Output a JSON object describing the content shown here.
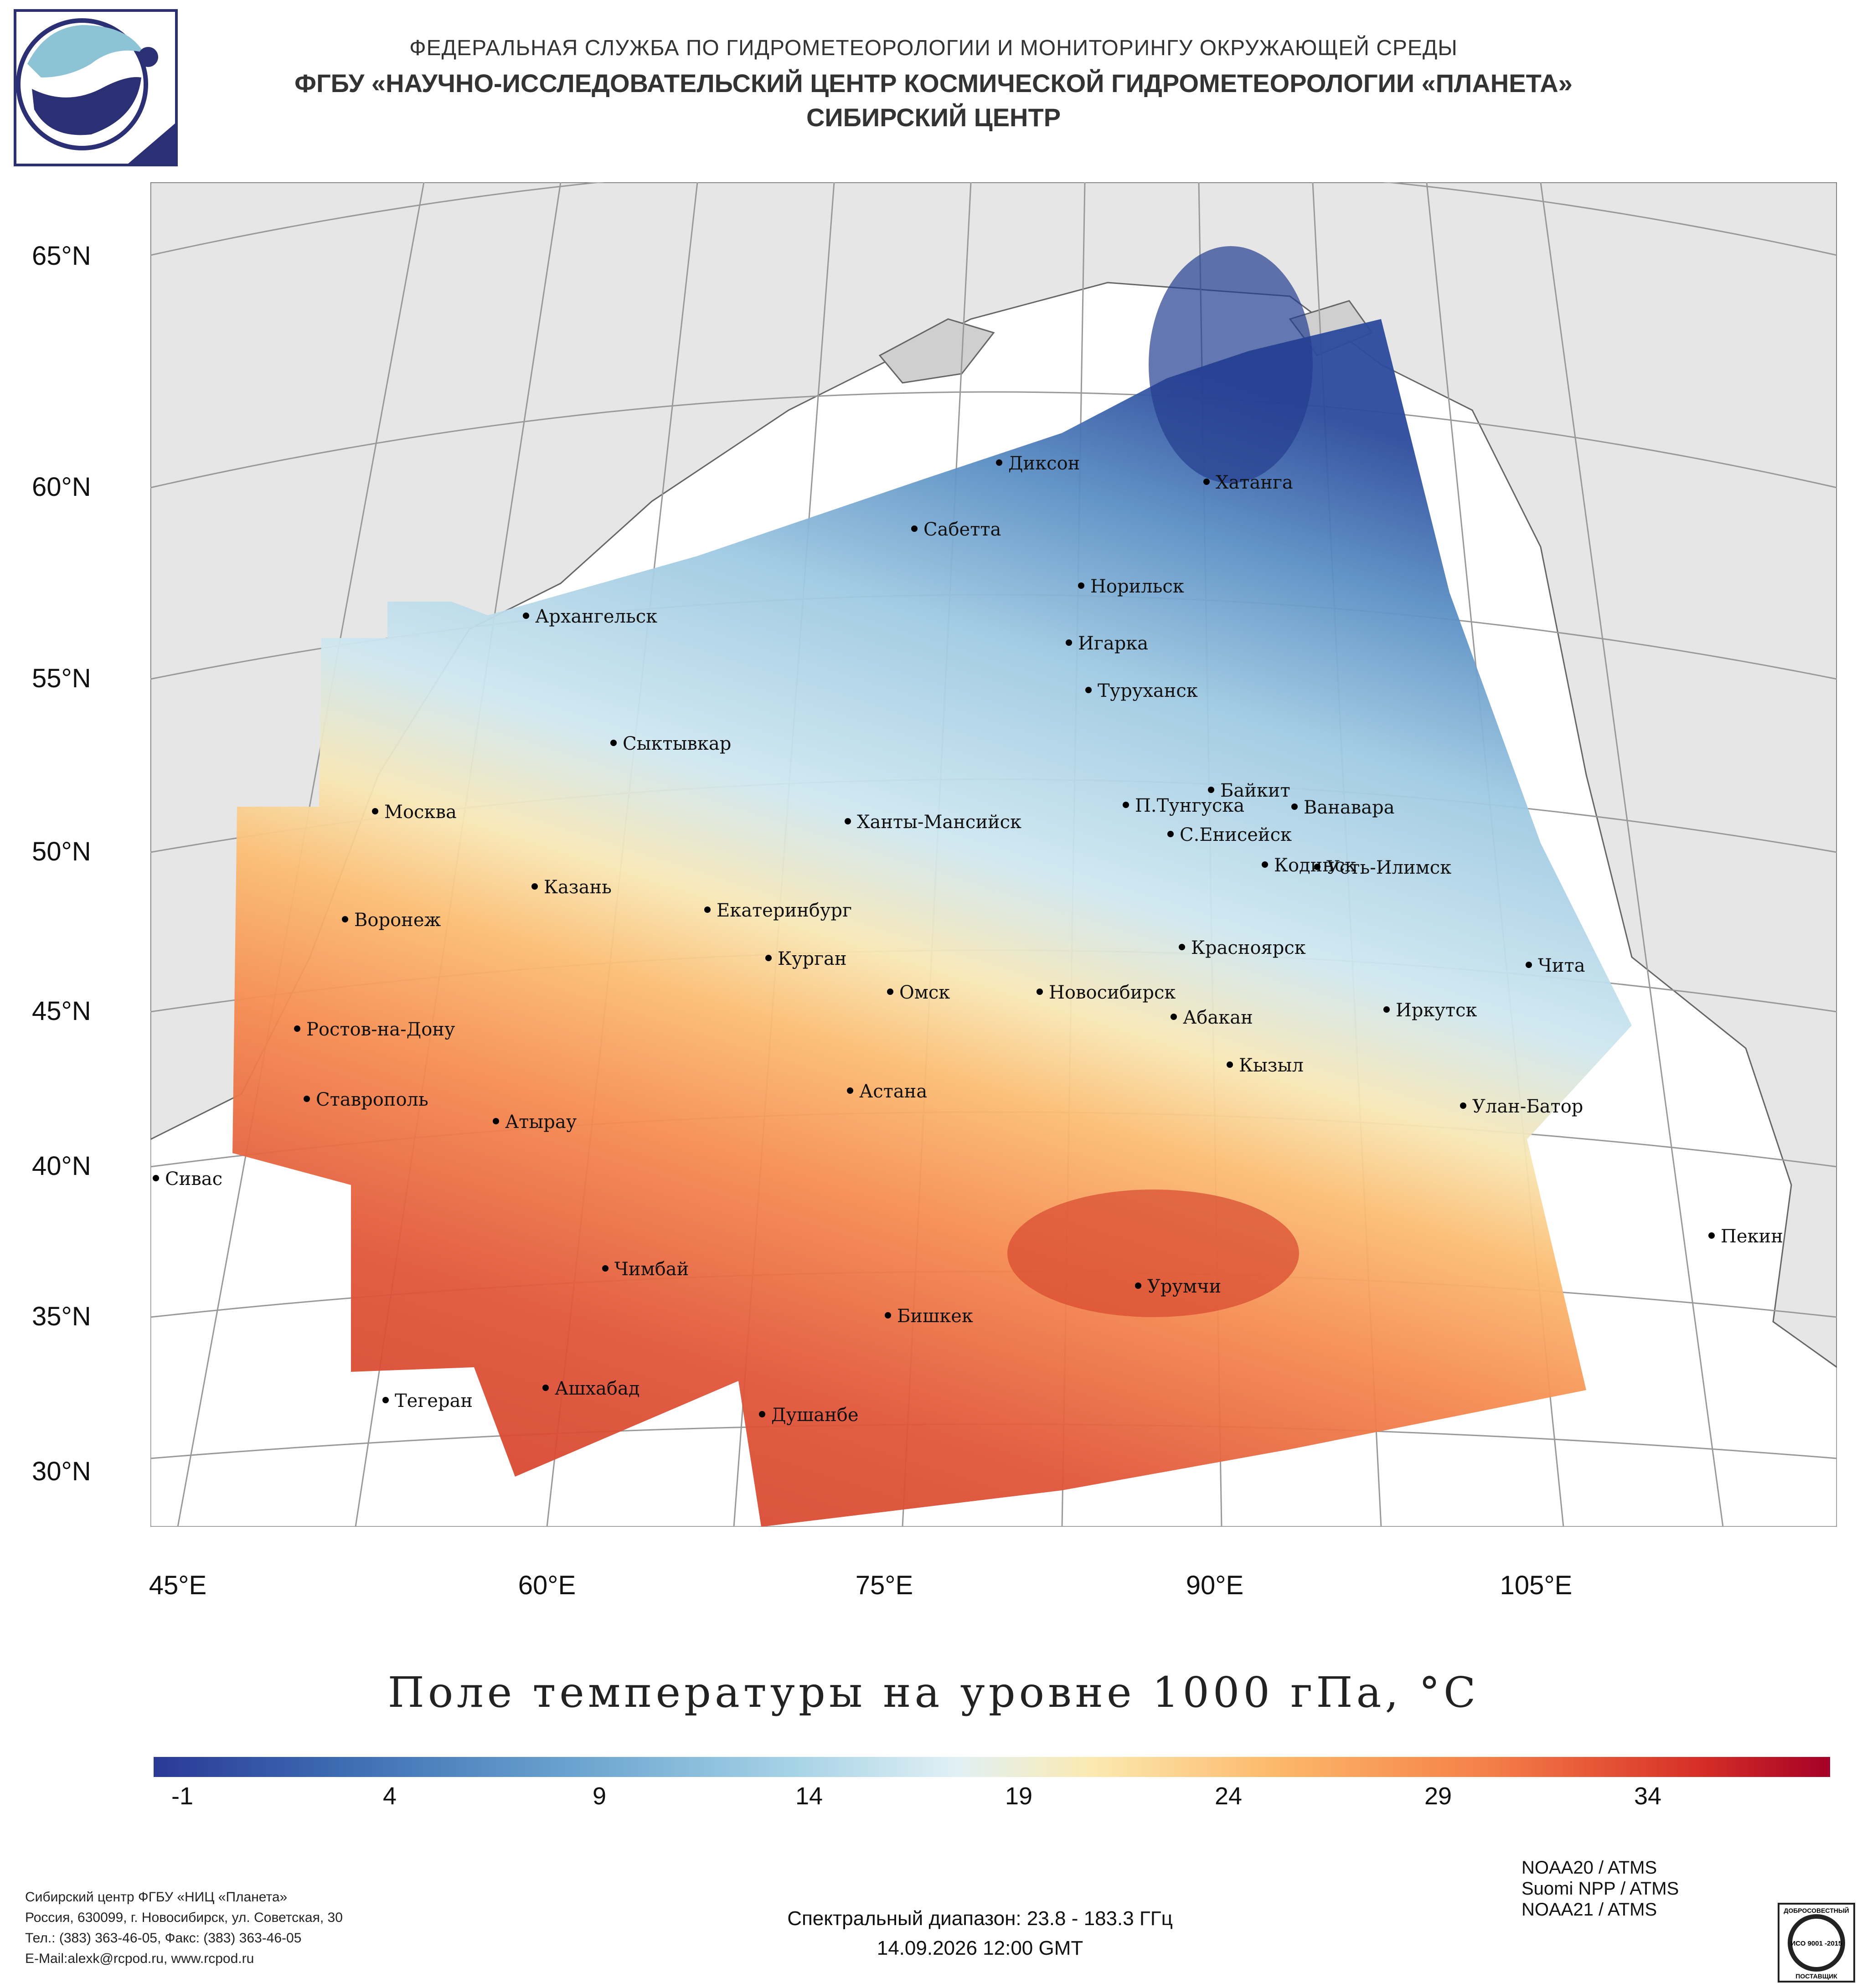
{
  "header": {
    "line1": "ФЕДЕРАЛЬНАЯ СЛУЖБА ПО ГИДРОМЕТЕОРОЛОГИИ И МОНИТОРИНГУ ОКРУЖАЮЩЕЙ СРЕДЫ",
    "line2": "ФГБУ «НАУЧНО-ИССЛЕДОВАТЕЛЬСКИЙ ЦЕНТР КОСМИЧЕСКОЙ ГИДРОМЕТЕОРОЛОГИИ «ПЛАНЕТА»",
    "line3": "СИБИРСКИЙ ЦЕНТР"
  },
  "map": {
    "lat_labels": [
      "65°N",
      "60°N",
      "55°N",
      "50°N",
      "45°N",
      "40°N",
      "35°N",
      "30°N"
    ],
    "lon_labels": [
      "45°E",
      "60°E",
      "75°E",
      "90°E",
      "105°E"
    ],
    "cities": [
      {
        "name": "Диксон"
      },
      {
        "name": "Хатанга"
      },
      {
        "name": "Сабетта"
      },
      {
        "name": "Норильск"
      },
      {
        "name": "Архангельск"
      },
      {
        "name": "Игарка"
      },
      {
        "name": "Туруханск"
      },
      {
        "name": "Сыктывкар"
      },
      {
        "name": "Байкит"
      },
      {
        "name": "Москва"
      },
      {
        "name": "П.Тунгуска"
      },
      {
        "name": "Ванавара"
      },
      {
        "name": "Ханты-Мансийск"
      },
      {
        "name": "С.Енисейск"
      },
      {
        "name": "Кодинск"
      },
      {
        "name": "Усть-Илимск"
      },
      {
        "name": "Казань"
      },
      {
        "name": "Екатеринбург"
      },
      {
        "name": "Воронеж"
      },
      {
        "name": "Красноярск"
      },
      {
        "name": "Курган"
      },
      {
        "name": "Чита"
      },
      {
        "name": "Омск"
      },
      {
        "name": "Новосибирск"
      },
      {
        "name": "Иркутск"
      },
      {
        "name": "Ростов-на-Дону"
      },
      {
        "name": "Абакан"
      },
      {
        "name": "Кызыл"
      },
      {
        "name": "Астана"
      },
      {
        "name": "Ставрополь"
      },
      {
        "name": "Улан-Батор"
      },
      {
        "name": "Атырау"
      },
      {
        "name": "Сивас"
      },
      {
        "name": "Пекин"
      },
      {
        "name": "Чимбай"
      },
      {
        "name": "Урумчи"
      },
      {
        "name": "Бишкек"
      },
      {
        "name": "Ашхабад"
      },
      {
        "name": "Тегеран"
      },
      {
        "name": "Душанбе"
      }
    ]
  },
  "title": "Поле температуры на уровне 1000 гПа, °С",
  "colorbar": {
    "ticks": [
      "-1",
      "4",
      "9",
      "14",
      "19",
      "24",
      "29",
      "34"
    ],
    "colors": {
      "cold": "#2a3996",
      "mid": "#e1f0f4",
      "warm": "#a50026"
    }
  },
  "footer": {
    "org_lines": [
      "Сибирский центр ФГБУ «НИЦ «Планета»",
      "Россия, 630099, г. Новосибирск, ул. Советская, 30",
      "Тел.: (383) 363-46-05, Факс: (383) 363-46-05",
      "E-Mail:alexk@rcpod.ru, www.rcpod.ru"
    ],
    "spectral": "Спектральный диапазон: 23.8 - 183.3 ГГц",
    "datetime": "14.09.2026 12:00 GMT",
    "satellites": [
      "NOAA20 / ATMS",
      "Suomi NPP / ATMS",
      "NOAA21 / ATMS"
    ],
    "iso_badge": {
      "top": "ДОБРОСОВЕСТНЫЙ",
      "mid": "ИСО 9001 -2015",
      "bottom": "ПОСТАВЩИК"
    }
  }
}
